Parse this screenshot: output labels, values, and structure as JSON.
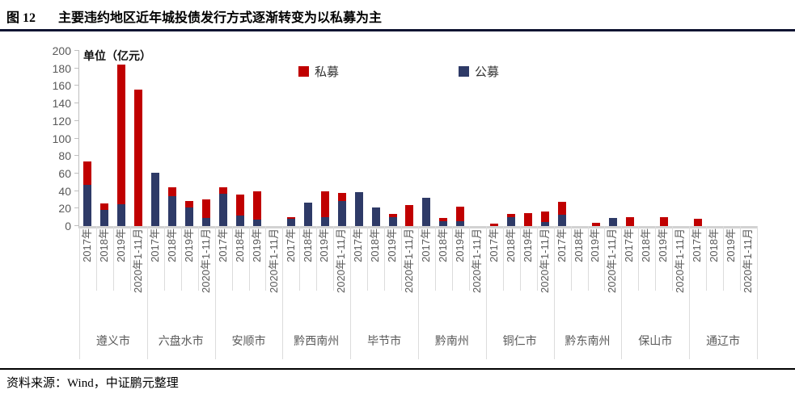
{
  "header": {
    "figure_label": "图 12",
    "title": "主要违约地区近年城投债发行方式逐渐转变为以私募为主"
  },
  "footer": {
    "source": "资料来源：Wind，中证鹏元整理"
  },
  "chart_data": {
    "type": "bar",
    "stacked": true,
    "grid": false,
    "unit_label": "单位（亿元）",
    "ylim": [
      0,
      200
    ],
    "yticks": [
      0,
      20,
      40,
      60,
      80,
      100,
      120,
      140,
      160,
      180,
      200
    ],
    "legend_position": "top-center",
    "series_meta": {
      "private": {
        "label": "私募",
        "color": "#C00000"
      },
      "public": {
        "label": "公募",
        "color": "#2E3A67"
      }
    },
    "periods": [
      "2017年",
      "2018年",
      "2019年",
      "2020年1-11月"
    ],
    "groups": [
      {
        "city": "遵义市",
        "public": [
          47,
          18,
          25,
          0
        ],
        "private": [
          27,
          8,
          159,
          156
        ]
      },
      {
        "city": "六盘水市",
        "public": [
          61,
          34,
          21,
          9
        ],
        "private": [
          0,
          10,
          8,
          21
        ]
      },
      {
        "city": "安顺市",
        "public": [
          37,
          12,
          7,
          0
        ],
        "private": [
          7,
          24,
          33,
          0
        ]
      },
      {
        "city": "黔西南州",
        "public": [
          8,
          27,
          10,
          29
        ],
        "private": [
          2,
          0,
          30,
          9
        ]
      },
      {
        "city": "毕节市",
        "public": [
          39,
          21,
          10,
          0
        ],
        "private": [
          0,
          0,
          4,
          24
        ]
      },
      {
        "city": "黔南州",
        "public": [
          32,
          6,
          6,
          0
        ],
        "private": [
          0,
          3,
          16,
          0
        ]
      },
      {
        "city": "铜仁市",
        "public": [
          0,
          10,
          0,
          5
        ],
        "private": [
          3,
          4,
          15,
          12
        ]
      },
      {
        "city": "黔东南州",
        "public": [
          13,
          0,
          0,
          9
        ],
        "private": [
          15,
          0,
          4,
          0
        ]
      },
      {
        "city": "保山市",
        "public": [
          0,
          0,
          0,
          0
        ],
        "private": [
          10,
          0,
          10,
          0
        ]
      },
      {
        "city": "通辽市",
        "public": [
          0,
          0,
          0,
          0
        ],
        "private": [
          8,
          0,
          0,
          0
        ]
      }
    ]
  }
}
